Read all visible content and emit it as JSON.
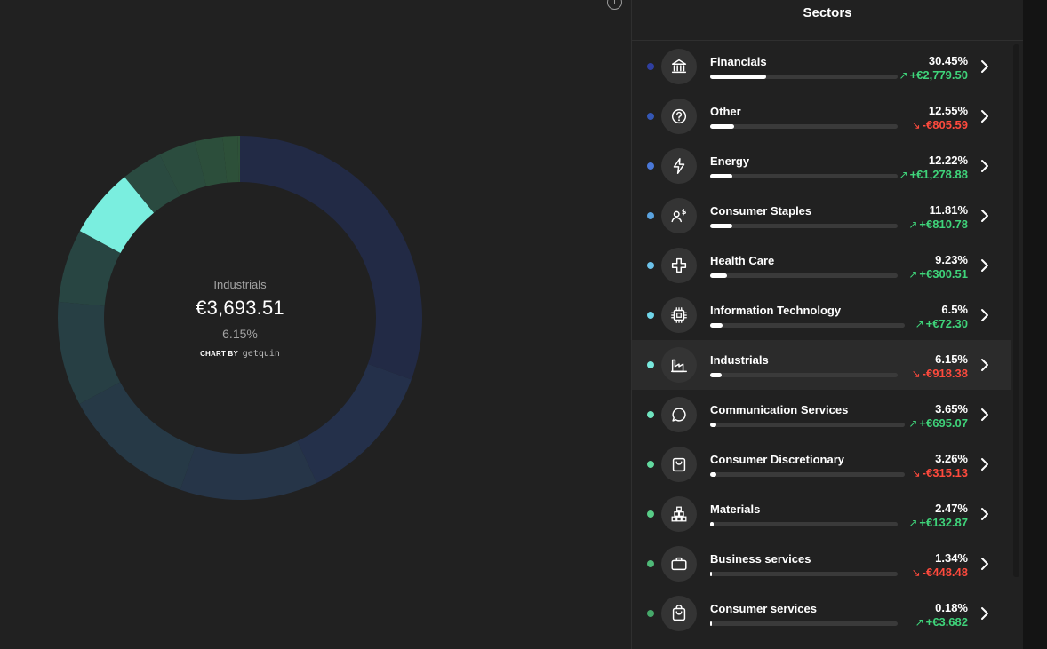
{
  "chart": {
    "selected_name": "Industrials",
    "selected_value": "€3,693.51",
    "selected_pct": "6.15%",
    "credit_prefix": "CHART BY",
    "credit_brand": "getquin"
  },
  "chart_data": {
    "type": "pie",
    "categories": [
      "Financials",
      "Other",
      "Energy",
      "Consumer Staples",
      "Health Care",
      "Information Technology",
      "Industrials",
      "Communication Services",
      "Consumer Discretionary",
      "Materials",
      "Business services",
      "Consumer services"
    ],
    "values": [
      30.45,
      12.55,
      12.22,
      11.81,
      9.23,
      6.5,
      6.15,
      3.65,
      3.26,
      2.47,
      1.34,
      0.18
    ],
    "colors": [
      "#222a45",
      "#24304a",
      "#263548",
      "#263946",
      "#273f44",
      "#284542",
      "#7aeedf",
      "#2a4a40",
      "#2b4c3e",
      "#2c4e3b",
      "#2d5039",
      "#2e5238"
    ],
    "highlighted": "Industrials"
  },
  "sectors": {
    "title": "Sectors",
    "items": [
      {
        "name": "Financials",
        "pct": "30.45%",
        "arrow": "↗",
        "change": "+€2,779.50",
        "dir": "up",
        "fill": 0.3,
        "dot": "#2f3fa0",
        "icon": "bank-icon"
      },
      {
        "name": "Other",
        "pct": "12.55%",
        "arrow": "↘",
        "change": "-€805.59",
        "dir": "down",
        "fill": 0.13,
        "dot": "#3457b5",
        "icon": "question-icon"
      },
      {
        "name": "Energy",
        "pct": "12.22%",
        "arrow": "↗",
        "change": "+€1,278.88",
        "dir": "up",
        "fill": 0.12,
        "dot": "#4a78d8",
        "icon": "lightning-icon"
      },
      {
        "name": "Consumer Staples",
        "pct": "11.81%",
        "arrow": "↗",
        "change": "+€810.78",
        "dir": "up",
        "fill": 0.12,
        "dot": "#5aa3e0",
        "icon": "person-dollar-icon"
      },
      {
        "name": "Health Care",
        "pct": "9.23%",
        "arrow": "↗",
        "change": "+€300.51",
        "dir": "up",
        "fill": 0.09,
        "dot": "#6cc2ea",
        "icon": "medical-cross-icon"
      },
      {
        "name": "Information Technology",
        "pct": "6.5%",
        "arrow": "↗",
        "change": "+€72.30",
        "dir": "up",
        "fill": 0.065,
        "dot": "#70d6ea",
        "icon": "chip-icon"
      },
      {
        "name": "Industrials",
        "pct": "6.15%",
        "arrow": "↘",
        "change": "-€918.38",
        "dir": "down",
        "fill": 0.06,
        "dot": "#78e8dd",
        "icon": "factory-icon",
        "active": true
      },
      {
        "name": "Communication Services",
        "pct": "3.65%",
        "arrow": "↗",
        "change": "+€695.07",
        "dir": "up",
        "fill": 0.03,
        "dot": "#6fe3bf",
        "icon": "chat-bubble-icon"
      },
      {
        "name": "Consumer Discretionary",
        "pct": "3.26%",
        "arrow": "↘",
        "change": "-€315.13",
        "dir": "down",
        "fill": 0.03,
        "dot": "#62d99f",
        "icon": "shopping-bag-icon"
      },
      {
        "name": "Materials",
        "pct": "2.47%",
        "arrow": "↗",
        "change": "+€132.87",
        "dir": "up",
        "fill": 0.02,
        "dot": "#58cc87",
        "icon": "blocks-icon"
      },
      {
        "name": "Business services",
        "pct": "1.34%",
        "arrow": "↘",
        "change": "-€448.48",
        "dir": "down",
        "fill": 0.01,
        "dot": "#4fb978",
        "icon": "briefcase-icon"
      },
      {
        "name": "Consumer services",
        "pct": "0.18%",
        "arrow": "↗",
        "change": "+€3.682",
        "dir": "up",
        "fill": 0.004,
        "dot": "#46a86a",
        "icon": "bag-icon"
      }
    ]
  }
}
